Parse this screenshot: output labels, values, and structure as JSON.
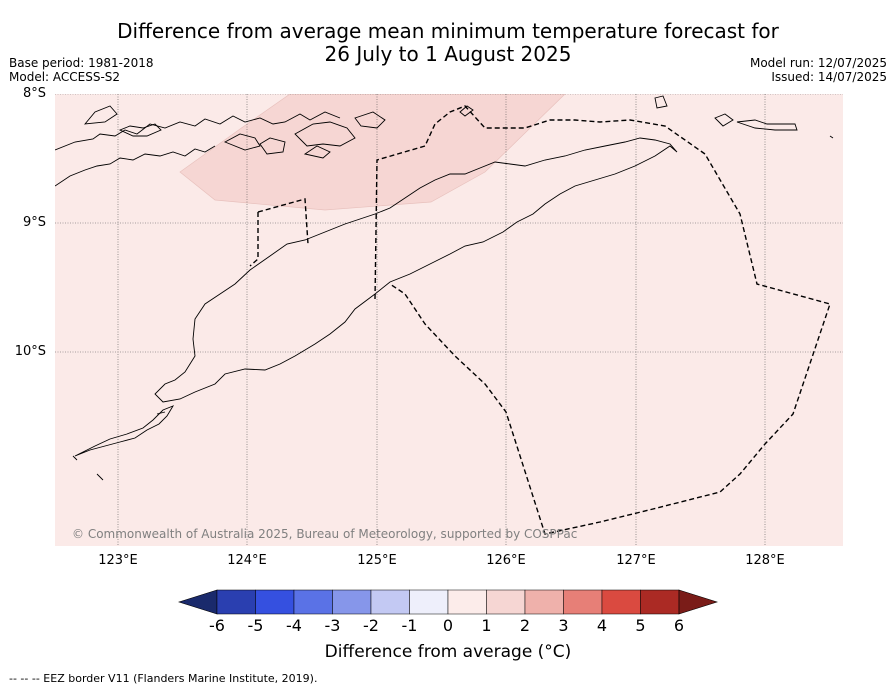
{
  "title_line1": "Difference from average mean minimum temperature forecast for",
  "title_line2": "26 July to 1 August 2025",
  "base_period": "Base period: 1981-2018",
  "model": "Model: ACCESS-S2",
  "model_run": "Model run: 12/07/2025",
  "issued": "Issued: 14/07/2025",
  "credit": "© Commonwealth of Australia 2025, Bureau of Meteorology, supported by COSPPac",
  "lat_ticks": [
    "8°S",
    "9°S",
    "10°S"
  ],
  "lon_ticks": [
    "123°E",
    "124°E",
    "125°E",
    "126°E",
    "127°E",
    "128°E"
  ],
  "colorbar": {
    "labels": [
      "-6",
      "-5",
      "-4",
      "-3",
      "-2",
      "-1",
      "0",
      "1",
      "2",
      "3",
      "4",
      "5",
      "6"
    ],
    "colors": [
      "#1a2a6c",
      "#2a3fb0",
      "#3550e0",
      "#5a72e6",
      "#8696ea",
      "#c3c9f3",
      "#eeeffb",
      "#fcecea",
      "#f6d6d3",
      "#efb1ab",
      "#e77f77",
      "#da4a40",
      "#ab2a24",
      "#7a1c18"
    ],
    "title": "Difference from average (°C)"
  },
  "map_colors": {
    "background_fill": "#fbeae8",
    "warm_fill": "#f6d6d3"
  },
  "footer": "-- -- -- EEZ border V11 (Flanders Marine Institute, 2019)."
}
